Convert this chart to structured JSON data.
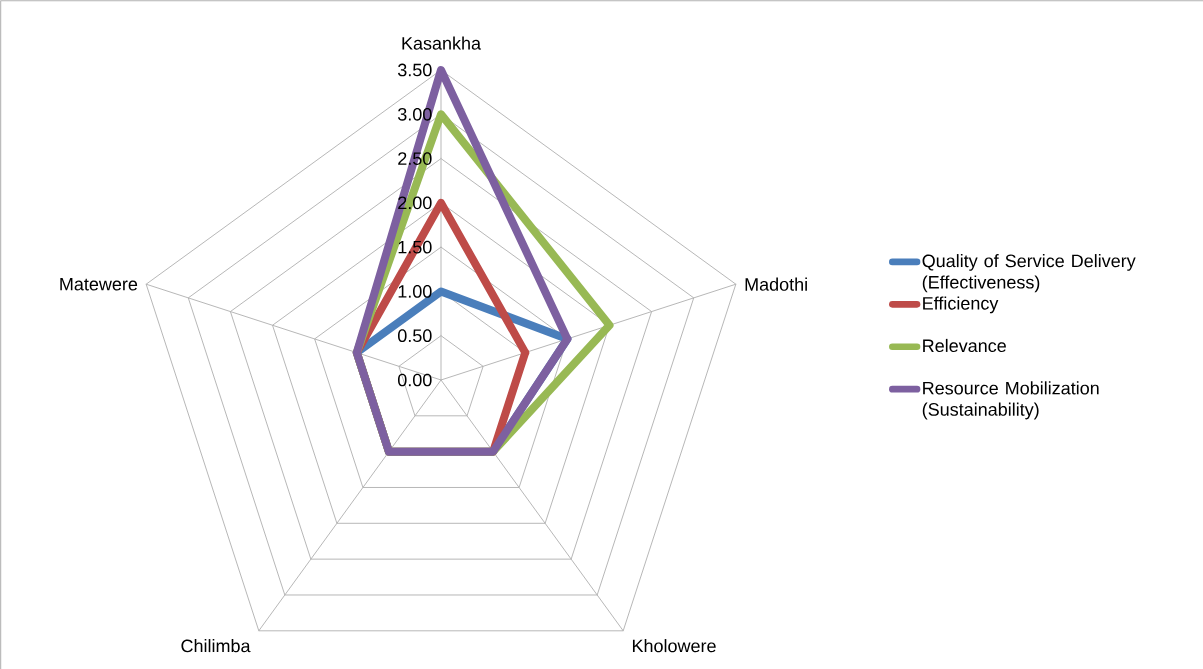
{
  "chart_data": {
    "type": "radar",
    "categories": [
      "Kasankha",
      "Madothi",
      "Kholowere",
      "Chilimba",
      "Matewere"
    ],
    "series": [
      {
        "name": "Quality of Service Delivery (Effectiveness)",
        "color": "#4a7ebb",
        "values": [
          1.0,
          1.5,
          1.0,
          1.0,
          1.0
        ]
      },
      {
        "name": "Efficiency",
        "color": "#be4b48",
        "values": [
          2.0,
          1.0,
          1.0,
          1.0,
          1.0
        ]
      },
      {
        "name": "Relevance",
        "color": "#98b954",
        "values": [
          3.0,
          2.0,
          1.0,
          1.0,
          1.0
        ]
      },
      {
        "name": "Resource Mobilization (Sustainability)",
        "color": "#7d60a0",
        "values": [
          3.5,
          1.5,
          1.0,
          1.0,
          1.0
        ]
      }
    ],
    "ylim": [
      0,
      3.5
    ],
    "yticks": [
      {
        "value": 0,
        "label": "0.00"
      },
      {
        "value": 0.5,
        "label": "0.50"
      },
      {
        "value": 1.0,
        "label": "1.00"
      },
      {
        "value": 1.5,
        "label": "1.50"
      },
      {
        "value": 2.0,
        "label": "2.00"
      },
      {
        "value": 2.5,
        "label": "2.50"
      },
      {
        "value": 3.0,
        "label": "3.00"
      },
      {
        "value": 3.5,
        "label": "3.50"
      }
    ],
    "grid": true,
    "legend": "right",
    "marker": "none",
    "line_style": "solid"
  }
}
